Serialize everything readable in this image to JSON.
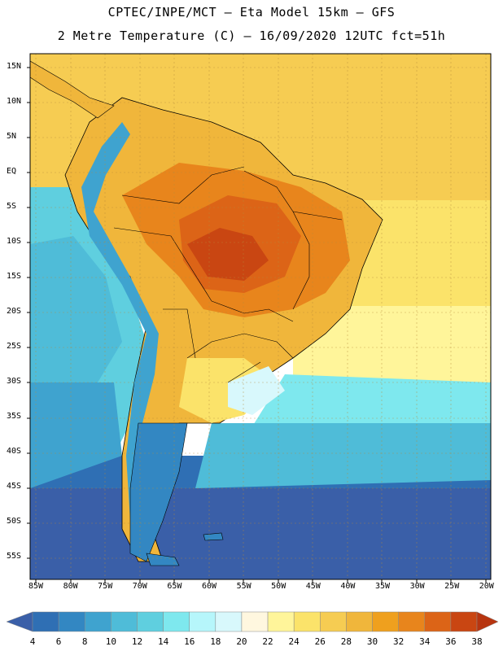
{
  "title_line1": "CPTEC/INPE/MCT –  Eta Model 15km – GFS",
  "title_line2": "2 Metre Temperature (C) – 16/09/2020 12UTC fct=51h",
  "lat_labels": [
    "15N",
    "10N",
    "5N",
    "EQ",
    "5S",
    "10S",
    "15S",
    "20S",
    "25S",
    "30S",
    "35S",
    "40S",
    "45S",
    "50S",
    "55S"
  ],
  "lon_labels": [
    "85W",
    "80W",
    "75W",
    "70W",
    "65W",
    "60W",
    "55W",
    "50W",
    "45W",
    "40W",
    "35W",
    "30W",
    "25W",
    "20W"
  ],
  "colorbar": {
    "labels": [
      "4",
      "6",
      "8",
      "10",
      "12",
      "14",
      "16",
      "18",
      "20",
      "22",
      "24",
      "26",
      "28",
      "30",
      "32",
      "34",
      "36",
      "38"
    ],
    "colors": [
      "#3a5fa8",
      "#2f6fb4",
      "#3387c2",
      "#3fa3cf",
      "#4fbcd8",
      "#5fcfdf",
      "#7ee8ee",
      "#b6f6fb",
      "#d8f8fc",
      "#fff7df",
      "#fff59a",
      "#fbe36a",
      "#f6cc52",
      "#f0b63b",
      "#efa01e",
      "#e8851c",
      "#dc6417",
      "#c94612",
      "#b73510"
    ]
  }
}
